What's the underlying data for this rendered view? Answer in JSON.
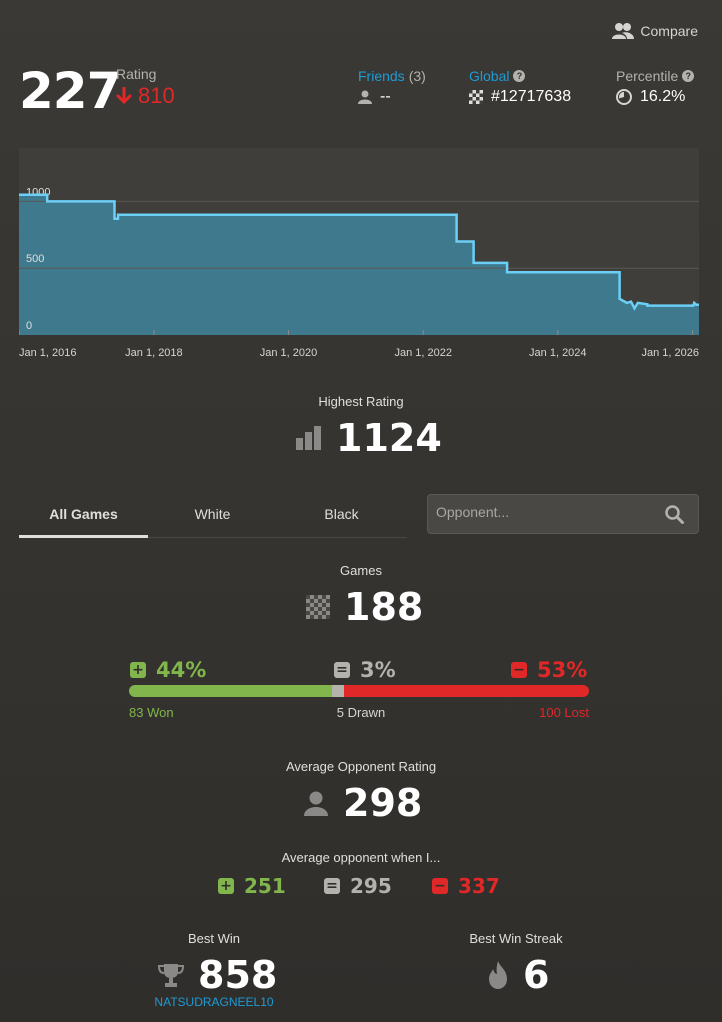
{
  "header": {
    "compare_label": "Compare",
    "rating_label": "Rating",
    "rating_value": "227",
    "rating_change": "810",
    "friends_label": "Friends",
    "friends_count": "(3)",
    "friends_value": "--",
    "global_label": "Global",
    "global_value": "#12717638",
    "percentile_label": "Percentile",
    "percentile_value": "16.2%"
  },
  "chart_data": {
    "type": "area",
    "x_ticks": [
      "Jan 1, 2016",
      "Jan 1, 2018",
      "Jan 1, 2020",
      "Jan 1, 2022",
      "Jan 1, 2024",
      "Jan 1, 2026"
    ],
    "y_ticks": [
      "0",
      "500",
      "1000"
    ],
    "ylim": [
      0,
      1400
    ],
    "grid": true,
    "series": [
      {
        "points": [
          [
            "2015-12-31",
            1050
          ],
          [
            "2016-06-01",
            1050
          ],
          [
            "2016-06-01",
            1000
          ],
          [
            "2017-06-01",
            1000
          ],
          [
            "2017-06-01",
            870
          ],
          [
            "2017-06-20",
            870
          ],
          [
            "2017-06-20",
            900
          ],
          [
            "2022-07-01",
            900
          ],
          [
            "2022-07-01",
            700
          ],
          [
            "2022-10-01",
            700
          ],
          [
            "2022-10-01",
            540
          ],
          [
            "2023-04-01",
            540
          ],
          [
            "2023-04-01",
            470
          ],
          [
            "2024-12-01",
            470
          ],
          [
            "2024-12-01",
            270
          ],
          [
            "2025-01-10",
            240
          ],
          [
            "2025-02-01",
            250
          ],
          [
            "2025-02-20",
            200
          ],
          [
            "2025-03-10",
            240
          ],
          [
            "2025-05-01",
            230
          ],
          [
            "2025-05-01",
            220
          ],
          [
            "2026-01-05",
            220
          ],
          [
            "2026-01-10",
            240
          ],
          [
            "2026-01-20",
            227
          ]
        ]
      }
    ],
    "colors": {
      "line": "#6bcff6",
      "fill": "#3f7f97"
    }
  },
  "highest": {
    "label": "Highest Rating",
    "value": "1124"
  },
  "tabs": [
    {
      "label": "All Games",
      "active": true
    },
    {
      "label": "White",
      "active": false
    },
    {
      "label": "Black",
      "active": false
    }
  ],
  "opponent_search": {
    "placeholder": "Opponent..."
  },
  "games": {
    "label": "Games",
    "value": "188"
  },
  "wdl": {
    "win_pct": "44%",
    "draw_pct": "3%",
    "loss_pct": "53%",
    "won_text": "83 Won",
    "drawn_text": "5 Drawn",
    "lost_text": "100 Lost",
    "won": 83,
    "drawn": 5,
    "lost": 100
  },
  "avg_opponent": {
    "label": "Average Opponent Rating",
    "value": "298"
  },
  "avg_when": {
    "label": "Average opponent when I...",
    "win": "251",
    "draw": "295",
    "loss": "337"
  },
  "best_win": {
    "label": "Best Win",
    "value": "858",
    "opponent": "NATSUDRAGNEEL10"
  },
  "best_streak": {
    "label": "Best Win Streak",
    "value": "6"
  },
  "colors": {
    "win": "#81b64c",
    "draw": "#b4b2ad",
    "loss": "#e02828",
    "link": "#1d9bd6"
  }
}
